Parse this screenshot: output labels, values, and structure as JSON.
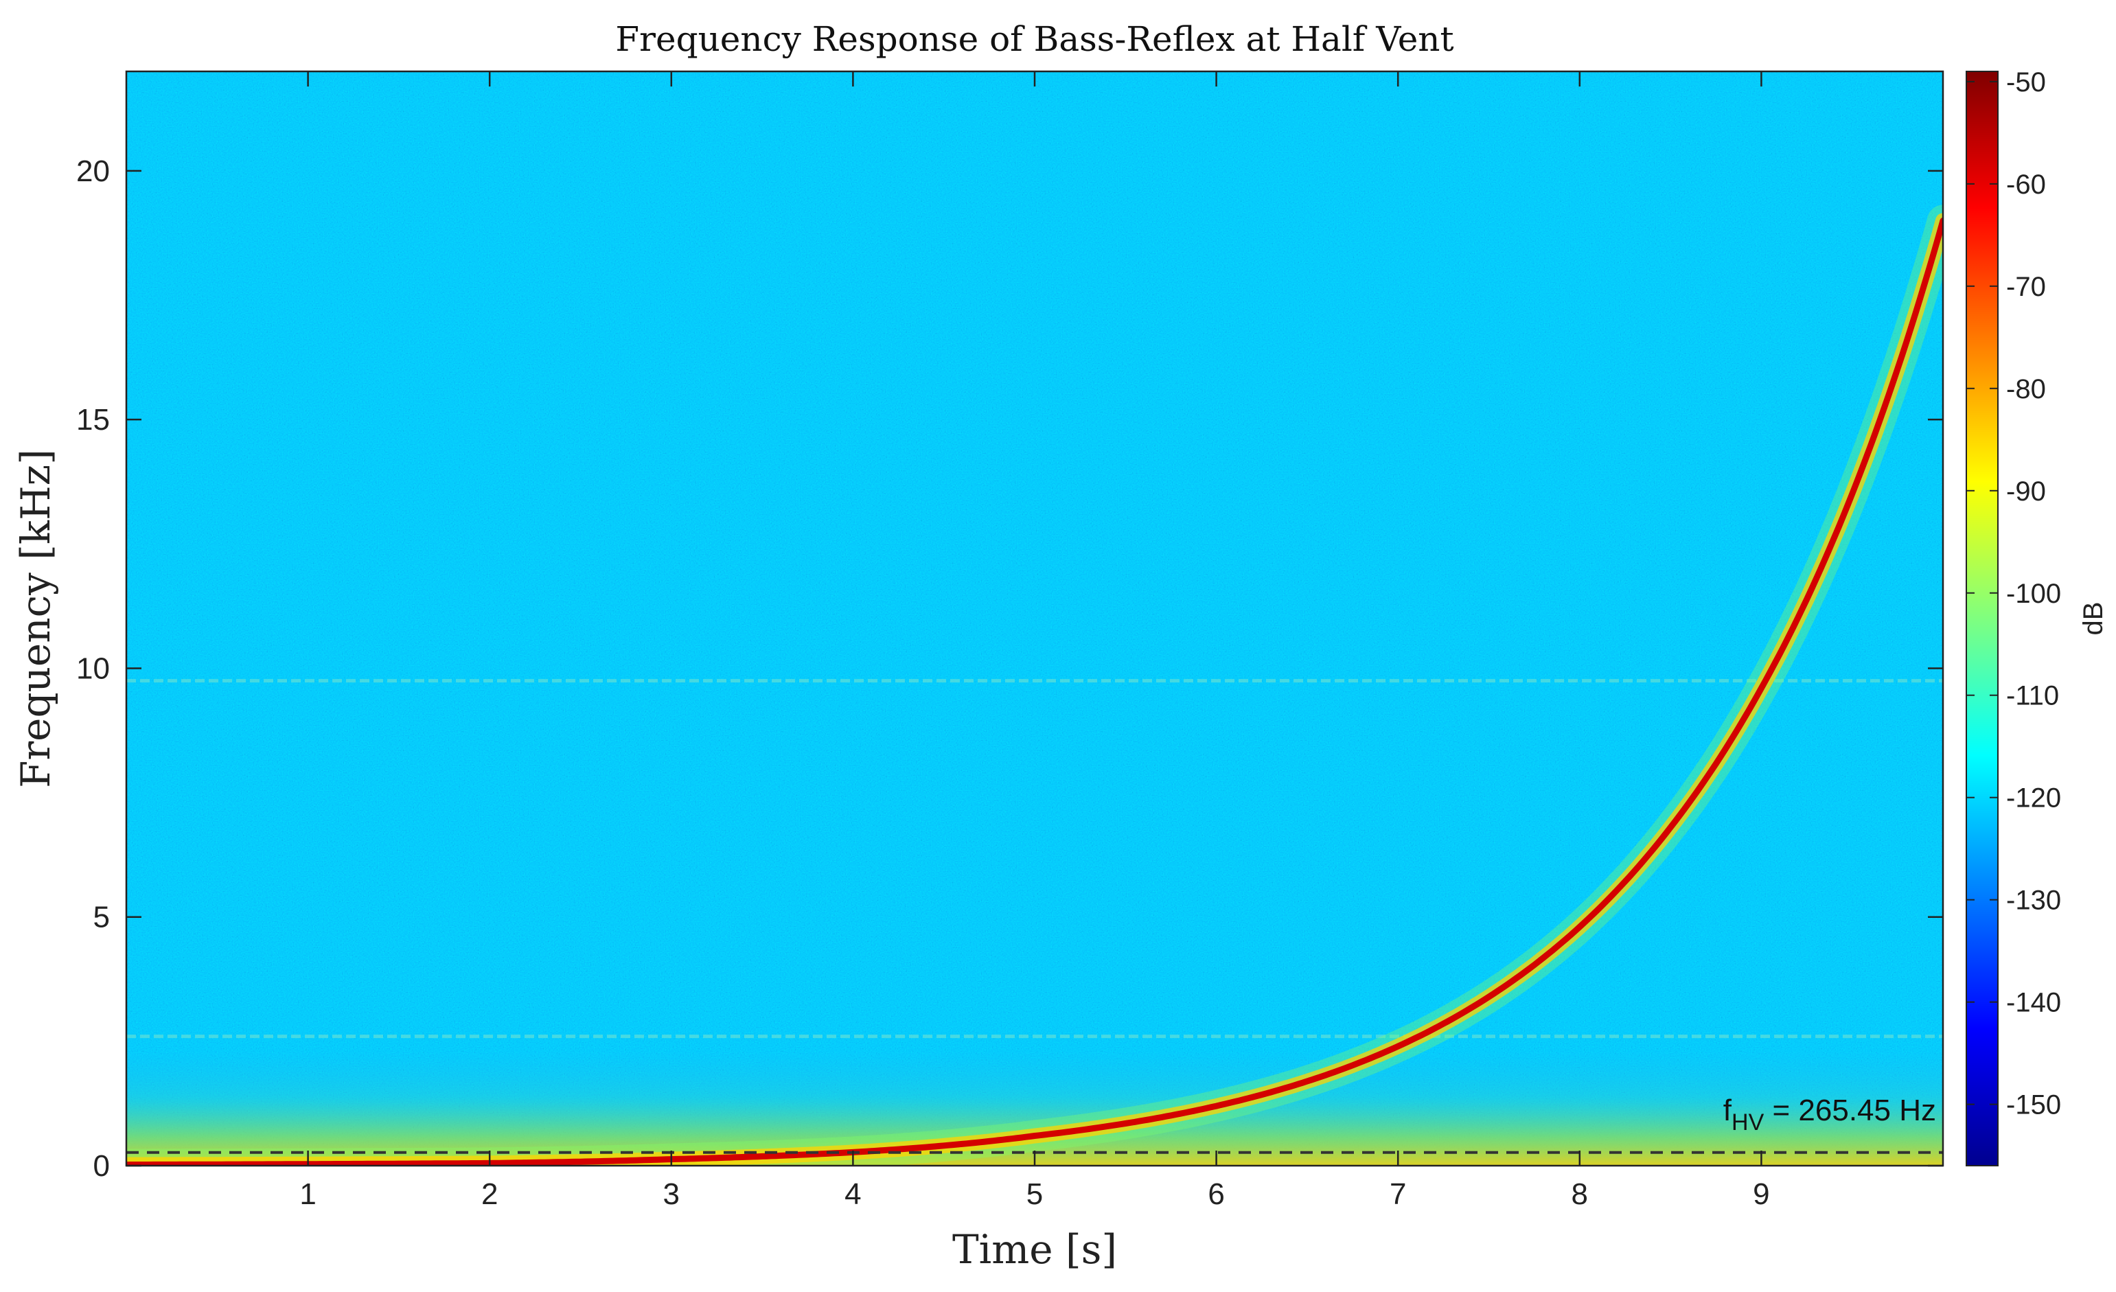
{
  "chart_data": {
    "type": "heatmap",
    "title": "Frequency Response of Bass-Reflex at Half Vent",
    "xlabel": "Time [s]",
    "ylabel": "Frequency [kHz]",
    "xlim": [
      0,
      10
    ],
    "ylim": [
      0,
      22
    ],
    "x_ticks": [
      1,
      2,
      3,
      4,
      5,
      6,
      7,
      8,
      9
    ],
    "y_ticks": [
      0,
      5,
      10,
      15,
      20
    ],
    "colorbar": {
      "label": "dB",
      "range": [
        -156,
        -49
      ],
      "ticks": [
        -50,
        -60,
        -70,
        -80,
        -90,
        -100,
        -110,
        -120,
        -130,
        -140,
        -150
      ],
      "colormap": "jet"
    },
    "background_level_db": -122,
    "sweep": {
      "description_points": [
        {
          "t": 0.0,
          "f_khz": 0.02
        },
        {
          "t": 2.0,
          "f_khz": 0.05
        },
        {
          "t": 3.0,
          "f_khz": 0.13
        },
        {
          "t": 4.0,
          "f_khz": 0.27
        },
        {
          "t": 5.0,
          "f_khz": 0.6
        },
        {
          "t": 6.0,
          "f_khz": 1.2
        },
        {
          "t": 7.0,
          "f_khz": 2.4
        },
        {
          "t": 8.0,
          "f_khz": 4.8
        },
        {
          "t": 8.5,
          "f_khz": 6.8
        },
        {
          "t": 9.0,
          "f_khz": 9.6
        },
        {
          "t": 10.0,
          "f_khz": 19.0
        }
      ],
      "level_db": -52
    },
    "reference_line": {
      "f_khz": 0.26545,
      "style": "dashed",
      "color": "#333333",
      "label_main": "f",
      "label_sub": "HV",
      "label_rest": " = 265.45 Hz"
    },
    "grid": false
  }
}
